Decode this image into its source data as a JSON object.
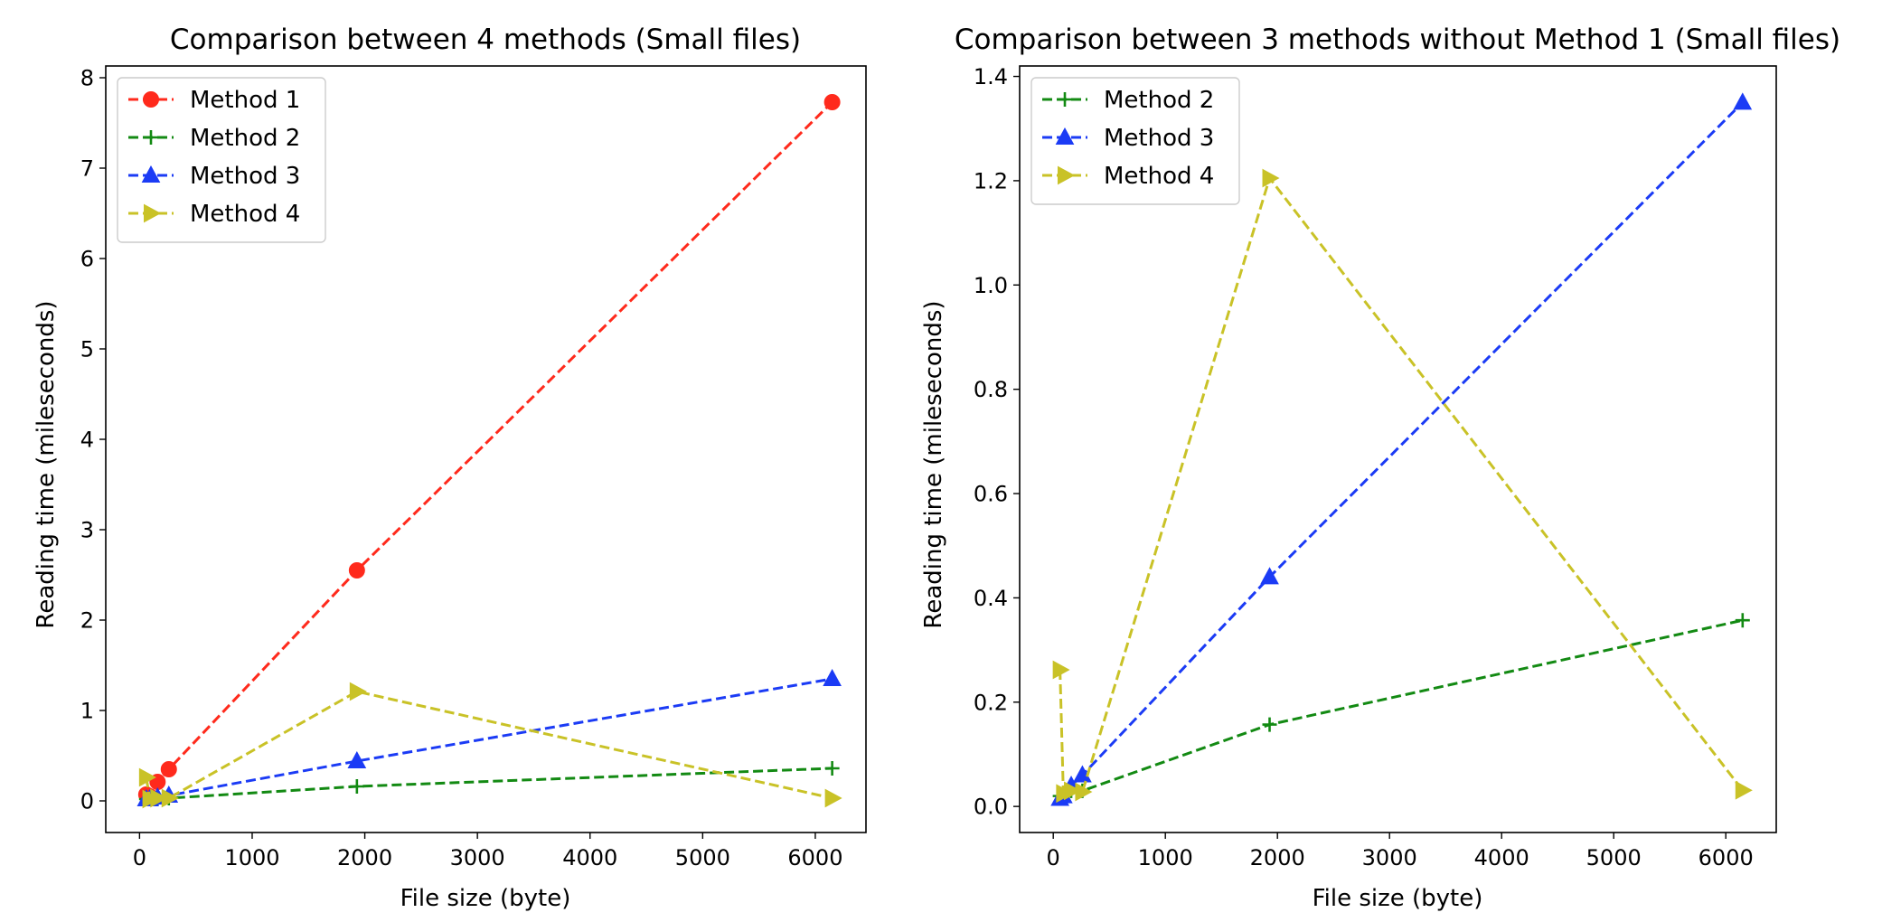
{
  "colors": {
    "Method 1": "#ff2a1c",
    "Method 2": "#138a13",
    "Method 3": "#1b3bf5",
    "Method 4": "#c9c227"
  },
  "markers": {
    "Method 1": "circle",
    "Method 2": "plus",
    "Method 3": "triangle-up",
    "Method 4": "triangle-right"
  },
  "chart_data": [
    {
      "type": "line",
      "title": "Comparison between 4 methods (Small files)",
      "xlabel": "File size (byte)",
      "ylabel": "Reading time (mileseconds)",
      "xlim": [
        -300,
        6450
      ],
      "ylim": [
        -0.35,
        8.13
      ],
      "xticks": [
        0,
        1000,
        2000,
        3000,
        4000,
        5000,
        6000
      ],
      "yticks": [
        0,
        1,
        2,
        3,
        4,
        5,
        6,
        7,
        8
      ],
      "legend_position": "top-left",
      "series": [
        {
          "name": "Method 1",
          "x": [
            60,
            90,
            160,
            260,
            1930,
            6150
          ],
          "y": [
            0.07,
            0.05,
            0.21,
            0.35,
            2.55,
            7.73
          ]
        },
        {
          "name": "Method 2",
          "x": [
            60,
            90,
            160,
            260,
            1930,
            6150
          ],
          "y": [
            0.02,
            0.02,
            0.03,
            0.03,
            0.16,
            0.36
          ]
        },
        {
          "name": "Method 3",
          "x": [
            60,
            90,
            160,
            260,
            1930,
            6150
          ],
          "y": [
            0.02,
            0.02,
            0.04,
            0.06,
            0.44,
            1.35
          ]
        },
        {
          "name": "Method 4",
          "x": [
            60,
            90,
            160,
            260,
            1930,
            6150
          ],
          "y": [
            0.26,
            0.02,
            0.03,
            0.03,
            1.21,
            0.03
          ]
        }
      ]
    },
    {
      "type": "line",
      "title": "Comparison between 3 methods without Method 1 (Small files)",
      "xlabel": "File size (byte)",
      "ylabel": "Reading time (mileseconds)",
      "xlim": [
        -300,
        6450
      ],
      "ylim": [
        -0.05,
        1.42
      ],
      "xticks": [
        0,
        1000,
        2000,
        3000,
        4000,
        5000,
        6000
      ],
      "yticks": [
        "0.0",
        "0.2",
        "0.4",
        "0.6",
        "0.8",
        "1.0",
        "1.2",
        "1.4"
      ],
      "legend_position": "top-left",
      "series": [
        {
          "name": "Method 2",
          "x": [
            60,
            90,
            160,
            260,
            1930,
            6150
          ],
          "y": [
            0.02,
            0.02,
            0.03,
            0.03,
            0.157,
            0.357
          ]
        },
        {
          "name": "Method 3",
          "x": [
            60,
            90,
            160,
            260,
            1930,
            6150
          ],
          "y": [
            0.015,
            0.02,
            0.04,
            0.06,
            0.44,
            1.35
          ]
        },
        {
          "name": "Method 4",
          "x": [
            60,
            90,
            160,
            260,
            1930,
            6150
          ],
          "y": [
            0.262,
            0.025,
            0.03,
            0.028,
            1.205,
            0.031
          ]
        }
      ]
    }
  ]
}
